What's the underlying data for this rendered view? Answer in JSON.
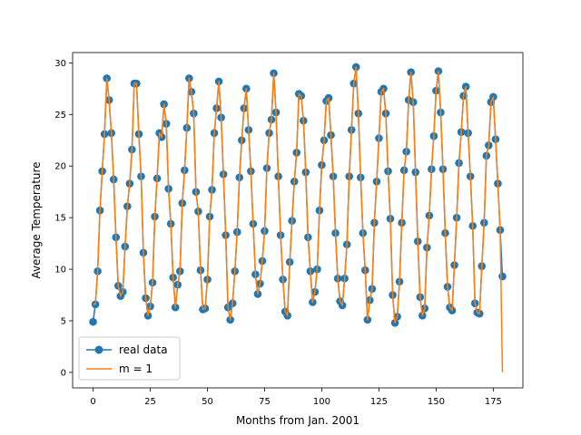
{
  "chart_data": {
    "type": "line",
    "title": "",
    "xlabel": "Months from Jan. 2001",
    "ylabel": "Average Temperature",
    "xlim": [
      -8.95,
      187.95
    ],
    "ylim": [
      -1.5,
      31.0
    ],
    "xticks": [
      0,
      25,
      50,
      75,
      100,
      125,
      150,
      175
    ],
    "yticks": [
      0,
      5,
      10,
      15,
      20,
      25,
      30
    ],
    "grid": false,
    "legend_position": "lower-left",
    "series": [
      {
        "name": "real data",
        "color": "#1f77b4",
        "style": "line-with-markers",
        "x": [
          0,
          1,
          2,
          3,
          4,
          5,
          6,
          7,
          8,
          9,
          10,
          11,
          12,
          13,
          14,
          15,
          16,
          17,
          18,
          19,
          20,
          21,
          22,
          23,
          24,
          25,
          26,
          27,
          28,
          29,
          30,
          31,
          32,
          33,
          34,
          35,
          36,
          37,
          38,
          39,
          40,
          41,
          42,
          43,
          44,
          45,
          46,
          47,
          48,
          49,
          50,
          51,
          52,
          53,
          54,
          55,
          56,
          57,
          58,
          59,
          60,
          61,
          62,
          63,
          64,
          65,
          66,
          67,
          68,
          69,
          70,
          71,
          72,
          73,
          74,
          75,
          76,
          77,
          78,
          79,
          80,
          81,
          82,
          83,
          84,
          85,
          86,
          87,
          88,
          89,
          90,
          91,
          92,
          93,
          94,
          95,
          96,
          97,
          98,
          99,
          100,
          101,
          102,
          103,
          104,
          105,
          106,
          107,
          108,
          109,
          110,
          111,
          112,
          113,
          114,
          115,
          116,
          117,
          118,
          119,
          120,
          121,
          122,
          123,
          124,
          125,
          126,
          127,
          128,
          129,
          130,
          131,
          132,
          133,
          134,
          135,
          136,
          137,
          138,
          139,
          140,
          141,
          142,
          143,
          144,
          145,
          146,
          147,
          148,
          149,
          150,
          151,
          152,
          153,
          154,
          155,
          156,
          157,
          158,
          159,
          160,
          161,
          162,
          163,
          164,
          165,
          166,
          167,
          168,
          169,
          170,
          171,
          172,
          173,
          174,
          175,
          176,
          177,
          178,
          179
        ],
        "y": [
          4.9,
          6.6,
          9.8,
          15.7,
          19.5,
          23.1,
          28.5,
          26.4,
          23.2,
          18.7,
          13.1,
          8.4,
          7.4,
          7.8,
          12.2,
          16.1,
          18.3,
          21.6,
          28.0,
          28.0,
          23.1,
          19.0,
          11.6,
          7.2,
          5.5,
          6.4,
          8.7,
          15.1,
          18.8,
          23.2,
          22.8,
          26.0,
          24.1,
          17.8,
          14.4,
          9.2,
          6.3,
          8.5,
          9.8,
          16.4,
          19.6,
          23.7,
          28.5,
          27.2,
          25.1,
          17.5,
          15.6,
          9.9,
          6.1,
          6.2,
          9.0,
          15.1,
          17.7,
          23.2,
          25.6,
          28.2,
          24.7,
          19.2,
          13.3,
          6.3,
          5.1,
          6.7,
          9.8,
          13.6,
          18.9,
          22.5,
          25.6,
          27.5,
          23.5,
          19.5,
          14.4,
          9.5,
          7.6,
          8.6,
          10.8,
          13.7,
          19.8,
          23.2,
          24.5,
          29.0,
          25.2,
          19.0,
          13.3,
          9.0,
          5.9,
          5.5,
          10.7,
          14.7,
          18.5,
          21.3,
          27.0,
          26.8,
          24.4,
          19.4,
          13.1,
          9.8,
          6.8,
          7.8,
          10.0,
          15.7,
          20.1,
          22.5,
          26.3,
          26.6,
          23.0,
          19.0,
          13.5,
          9.1,
          6.9,
          6.5,
          9.1,
          12.4,
          19.0,
          23.5,
          28.0,
          29.6,
          25.1,
          18.9,
          13.5,
          9.9,
          5.1,
          7.0,
          8.1,
          14.5,
          18.5,
          22.7,
          27.2,
          27.5,
          25.1,
          19.5,
          14.9,
          7.5,
          4.8,
          5.4,
          8.8,
          14.5,
          19.6,
          21.4,
          26.4,
          29.1,
          26.2,
          19.4,
          12.7,
          7.3,
          5.5,
          6.2,
          12.1,
          15.2,
          19.7,
          22.9,
          27.3,
          29.2,
          25.2,
          19.7,
          13.5,
          8.3,
          6.3,
          6.0,
          10.4,
          15.0,
          20.3,
          23.3,
          26.8,
          27.7,
          23.2,
          19.0,
          14.2,
          6.7,
          5.8,
          5.7,
          10.3,
          14.5,
          21.0,
          22.0,
          26.2,
          26.7,
          22.6,
          18.3,
          13.8,
          9.3
        ]
      },
      {
        "name": "m = 1",
        "color": "#ff7f0e",
        "style": "line",
        "x": [
          0,
          1,
          2,
          3,
          4,
          5,
          6,
          7,
          8,
          9,
          10,
          11,
          12,
          13,
          14,
          15,
          16,
          17,
          18,
          19,
          20,
          21,
          22,
          23,
          24,
          25,
          26,
          27,
          28,
          29,
          30,
          31,
          32,
          33,
          34,
          35,
          36,
          37,
          38,
          39,
          40,
          41,
          42,
          43,
          44,
          45,
          46,
          47,
          48,
          49,
          50,
          51,
          52,
          53,
          54,
          55,
          56,
          57,
          58,
          59,
          60,
          61,
          62,
          63,
          64,
          65,
          66,
          67,
          68,
          69,
          70,
          71,
          72,
          73,
          74,
          75,
          76,
          77,
          78,
          79,
          80,
          81,
          82,
          83,
          84,
          85,
          86,
          87,
          88,
          89,
          90,
          91,
          92,
          93,
          94,
          95,
          96,
          97,
          98,
          99,
          100,
          101,
          102,
          103,
          104,
          105,
          106,
          107,
          108,
          109,
          110,
          111,
          112,
          113,
          114,
          115,
          116,
          117,
          118,
          119,
          120,
          121,
          122,
          123,
          124,
          125,
          126,
          127,
          128,
          129,
          130,
          131,
          132,
          133,
          134,
          135,
          136,
          137,
          138,
          139,
          140,
          141,
          142,
          143,
          144,
          145,
          146,
          147,
          148,
          149,
          150,
          151,
          152,
          153,
          154,
          155,
          156,
          157,
          158,
          159,
          160,
          161,
          162,
          163,
          164,
          165,
          166,
          167,
          168,
          169,
          170,
          171,
          172,
          173,
          174,
          175,
          176,
          177,
          178,
          179
        ],
        "y": [
          6.6,
          6.6,
          9.8,
          15.7,
          19.5,
          23.1,
          28.5,
          26.4,
          23.2,
          18.7,
          13.1,
          8.4,
          7.4,
          7.8,
          12.2,
          16.1,
          18.3,
          21.6,
          28.0,
          28.0,
          23.1,
          19.0,
          11.6,
          7.2,
          5.5,
          6.4,
          8.7,
          15.1,
          18.8,
          23.2,
          22.8,
          26.0,
          24.1,
          17.8,
          14.4,
          9.2,
          6.3,
          8.5,
          9.8,
          16.4,
          19.6,
          23.7,
          28.5,
          27.2,
          25.1,
          17.5,
          15.6,
          9.9,
          6.1,
          6.2,
          9.0,
          15.1,
          17.7,
          23.2,
          25.6,
          28.2,
          24.7,
          19.2,
          13.3,
          6.3,
          5.1,
          6.7,
          9.8,
          13.6,
          18.9,
          22.5,
          25.6,
          27.5,
          23.5,
          19.5,
          14.4,
          9.5,
          7.6,
          8.6,
          10.8,
          13.7,
          19.8,
          23.2,
          24.5,
          29.0,
          25.2,
          19.0,
          13.3,
          9.0,
          5.9,
          5.5,
          10.7,
          14.7,
          18.5,
          21.3,
          27.0,
          26.8,
          24.4,
          19.4,
          13.1,
          9.8,
          6.8,
          7.8,
          10.0,
          15.7,
          20.1,
          22.5,
          26.3,
          26.6,
          23.0,
          19.0,
          13.5,
          9.1,
          6.9,
          6.5,
          9.1,
          12.4,
          19.0,
          23.5,
          28.0,
          29.6,
          25.1,
          18.9,
          13.5,
          9.9,
          5.1,
          7.0,
          8.1,
          14.5,
          18.5,
          22.7,
          27.2,
          27.5,
          25.1,
          19.5,
          14.9,
          7.5,
          4.8,
          5.4,
          8.8,
          14.5,
          19.6,
          21.4,
          26.4,
          29.1,
          26.2,
          19.4,
          12.7,
          7.3,
          5.5,
          6.2,
          12.1,
          15.2,
          19.7,
          22.9,
          27.3,
          29.2,
          25.2,
          19.7,
          13.5,
          8.3,
          6.3,
          6.0,
          10.4,
          15.0,
          20.3,
          23.3,
          26.8,
          27.7,
          23.2,
          19.0,
          14.2,
          6.7,
          5.8,
          5.7,
          10.3,
          14.5,
          21.0,
          22.0,
          26.2,
          26.7,
          22.6,
          18.3,
          13.8,
          0.0
        ]
      }
    ]
  }
}
